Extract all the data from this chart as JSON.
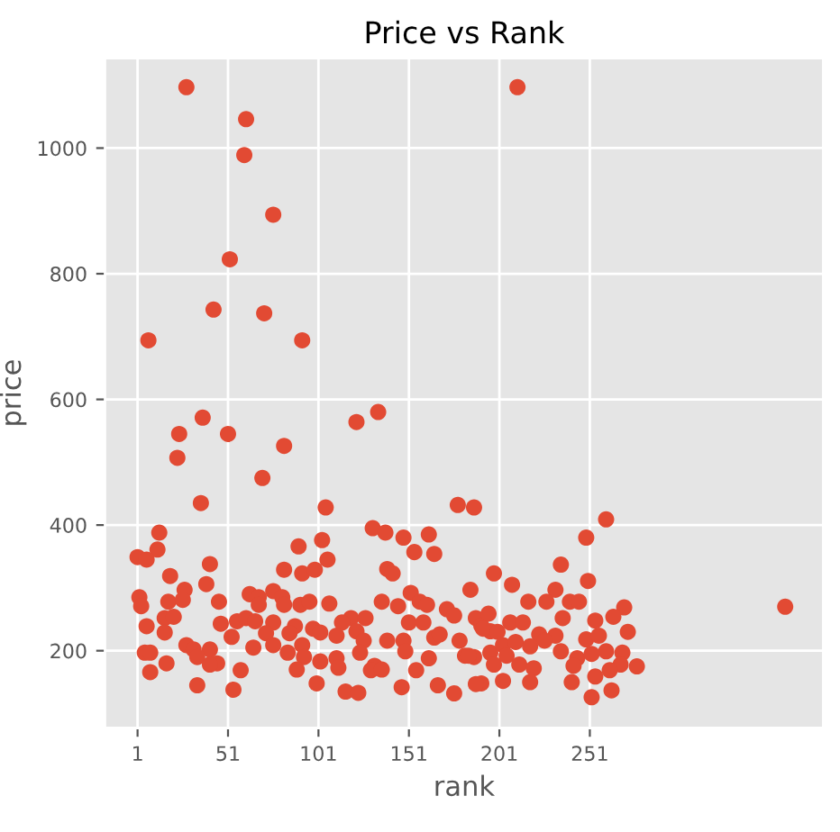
{
  "chart_data": {
    "type": "scatter",
    "title": "Price vs Rank",
    "xlabel": "rank",
    "ylabel": "price",
    "xlim": [
      -17,
      380
    ],
    "ylim": [
      77,
      1143
    ],
    "xticks": [
      1,
      51,
      101,
      151,
      201,
      251
    ],
    "yticks": [
      200,
      400,
      600,
      800,
      1000
    ],
    "grid": true,
    "marker": "circle",
    "series": [
      {
        "color": "#e24a33",
        "x": [
          28,
          211,
          61,
          60,
          76,
          52,
          43,
          71,
          7,
          92,
          37,
          24,
          51,
          122,
          134,
          23,
          82,
          70,
          36,
          105,
          178,
          187,
          13,
          131,
          138,
          148,
          162,
          103,
          12,
          90,
          154,
          165,
          1,
          6,
          106,
          41,
          82,
          92,
          99,
          139,
          142,
          19,
          39,
          27,
          2,
          63,
          68,
          76,
          81,
          152,
          185,
          3,
          18,
          26,
          46,
          68,
          82,
          91,
          96,
          107,
          136,
          145,
          157,
          161,
          172,
          16,
          21,
          56,
          61,
          76,
          119,
          127,
          176,
          188,
          6,
          47,
          66,
          88,
          98,
          114,
          151,
          159,
          191,
          16,
          53,
          72,
          85,
          102,
          111,
          122,
          165,
          196,
          28,
          32,
          41,
          65,
          76,
          92,
          126,
          139,
          148,
          168,
          179,
          5,
          8,
          34,
          45,
          84,
          93,
          102,
          111,
          124,
          132,
          149,
          182,
          187,
          196,
          41,
          58,
          89,
          112,
          130,
          136,
          162,
          8,
          17,
          34,
          100,
          116,
          123,
          147,
          155,
          167,
          176,
          191,
          54,
          260,
          249,
          235,
          198,
          250,
          208,
          232,
          217,
          227,
          240,
          245,
          359,
          270,
          195,
          207,
          214,
          254,
          264,
          236,
          192,
          200,
          223,
          232,
          249,
          256,
          272,
          203,
          210,
          218,
          226,
          235,
          260,
          269,
          184,
          205,
          244,
          252,
          277,
          198,
          212,
          220,
          242,
          268,
          262,
          254,
          188,
          203,
          218,
          241,
          263,
          252
        ],
        "values": [
          1097,
          1097,
          1046,
          989,
          894,
          823,
          743,
          737,
          694,
          694,
          571,
          545,
          545,
          564,
          580,
          507,
          526,
          475,
          435,
          428,
          432,
          428,
          388,
          395,
          388,
          380,
          385,
          376,
          361,
          366,
          357,
          354,
          349,
          345,
          345,
          338,
          329,
          323,
          329,
          330,
          323,
          319,
          306,
          297,
          285,
          290,
          285,
          295,
          285,
          292,
          297,
          271,
          278,
          281,
          278,
          273,
          273,
          273,
          278,
          275,
          278,
          271,
          278,
          273,
          266,
          252,
          254,
          247,
          252,
          245,
          252,
          252,
          256,
          252,
          239,
          243,
          247,
          239,
          235,
          245,
          245,
          245,
          240,
          229,
          222,
          228,
          228,
          229,
          224,
          231,
          221,
          231,
          209,
          202,
          202,
          205,
          209,
          209,
          216,
          216,
          216,
          226,
          216,
          197,
          197,
          190,
          180,
          197,
          190,
          183,
          188,
          197,
          176,
          199,
          192,
          190,
          197,
          178,
          169,
          170,
          173,
          169,
          170,
          188,
          166,
          180,
          145,
          148,
          135,
          133,
          142,
          169,
          145,
          132,
          148,
          138,
          409,
          380,
          337,
          323,
          311,
          305,
          297,
          278,
          278,
          278,
          278,
          270,
          269,
          259,
          245,
          245,
          248,
          254,
          252,
          235,
          230,
          226,
          224,
          218,
          224,
          230,
          209,
          214,
          207,
          216,
          199,
          199,
          197,
          192,
          192,
          188,
          195,
          175,
          178,
          178,
          172,
          176,
          178,
          169,
          159,
          147,
          152,
          150,
          150,
          137,
          126
        ]
      }
    ]
  }
}
